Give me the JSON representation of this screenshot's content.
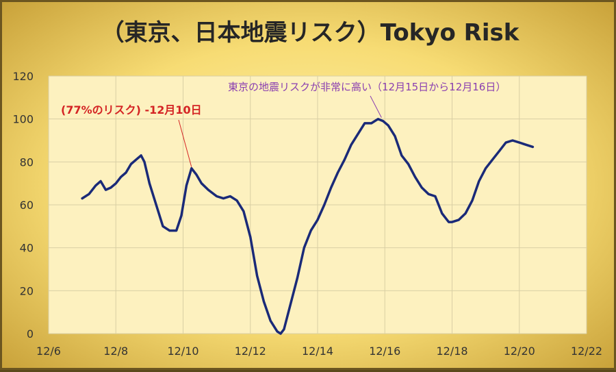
{
  "chart_data": {
    "type": "line",
    "title": "（東京、日本地震リスク）Tokyo Risk",
    "xlabel": "",
    "ylabel": "",
    "x_ticks": [
      "12/6",
      "12/8",
      "12/10",
      "12/12",
      "12/14",
      "12/16",
      "12/18",
      "12/20",
      "12/22"
    ],
    "y_ticks": [
      "0",
      "20",
      "40",
      "60",
      "80",
      "100",
      "120"
    ],
    "xlim": [
      6,
      22
    ],
    "ylim": [
      0,
      120
    ],
    "grid": true,
    "line_color": "#1a2a78",
    "annotations": [
      {
        "text": "(77%のリスク) -12月10日",
        "x": 10.25,
        "y": 77,
        "color": "#d42424"
      },
      {
        "text": "東京の地震リスクが非常に高い（12月15日から12月16日）",
        "x": 15.9,
        "y": 100,
        "color": "#8a3fb0"
      }
    ],
    "series": [
      {
        "x": [
          7.0,
          7.2,
          7.4,
          7.55,
          7.7,
          7.85,
          8.0,
          8.15,
          8.3,
          8.45,
          8.6,
          8.75,
          8.85,
          9.0,
          9.2,
          9.4,
          9.6,
          9.8,
          9.95,
          10.1,
          10.25,
          10.4,
          10.55,
          10.75,
          11.0,
          11.2,
          11.4,
          11.6,
          11.8,
          12.0,
          12.2,
          12.4,
          12.6,
          12.8,
          12.9,
          13.0,
          13.2,
          13.4,
          13.6,
          13.8,
          14.0,
          14.2,
          14.4,
          14.6,
          14.8,
          15.0,
          15.2,
          15.4,
          15.6,
          15.8,
          15.95,
          16.1,
          16.3,
          16.5,
          16.7,
          16.9,
          17.1,
          17.3,
          17.5,
          17.7,
          17.8,
          17.9,
          18.0,
          18.2,
          18.4,
          18.6,
          18.8,
          19.0,
          19.2,
          19.4,
          19.6,
          19.8,
          20.0,
          20.2,
          20.4
        ],
        "y": [
          63,
          65,
          69,
          71,
          67,
          68,
          70,
          73,
          75,
          79,
          81,
          83,
          80,
          70,
          60,
          50,
          48,
          48,
          55,
          69,
          77,
          74,
          70,
          67,
          64,
          63,
          64,
          62,
          57,
          45,
          27,
          15,
          6,
          1,
          0,
          2,
          14,
          26,
          40,
          48,
          53,
          60,
          68,
          75,
          81,
          88,
          93,
          98,
          98,
          100,
          99,
          97,
          92,
          83,
          79,
          73,
          68,
          65,
          64,
          56,
          54,
          52,
          52,
          53,
          56,
          62,
          71,
          77,
          81,
          85,
          89,
          90,
          89,
          88,
          87
        ]
      }
    ]
  }
}
